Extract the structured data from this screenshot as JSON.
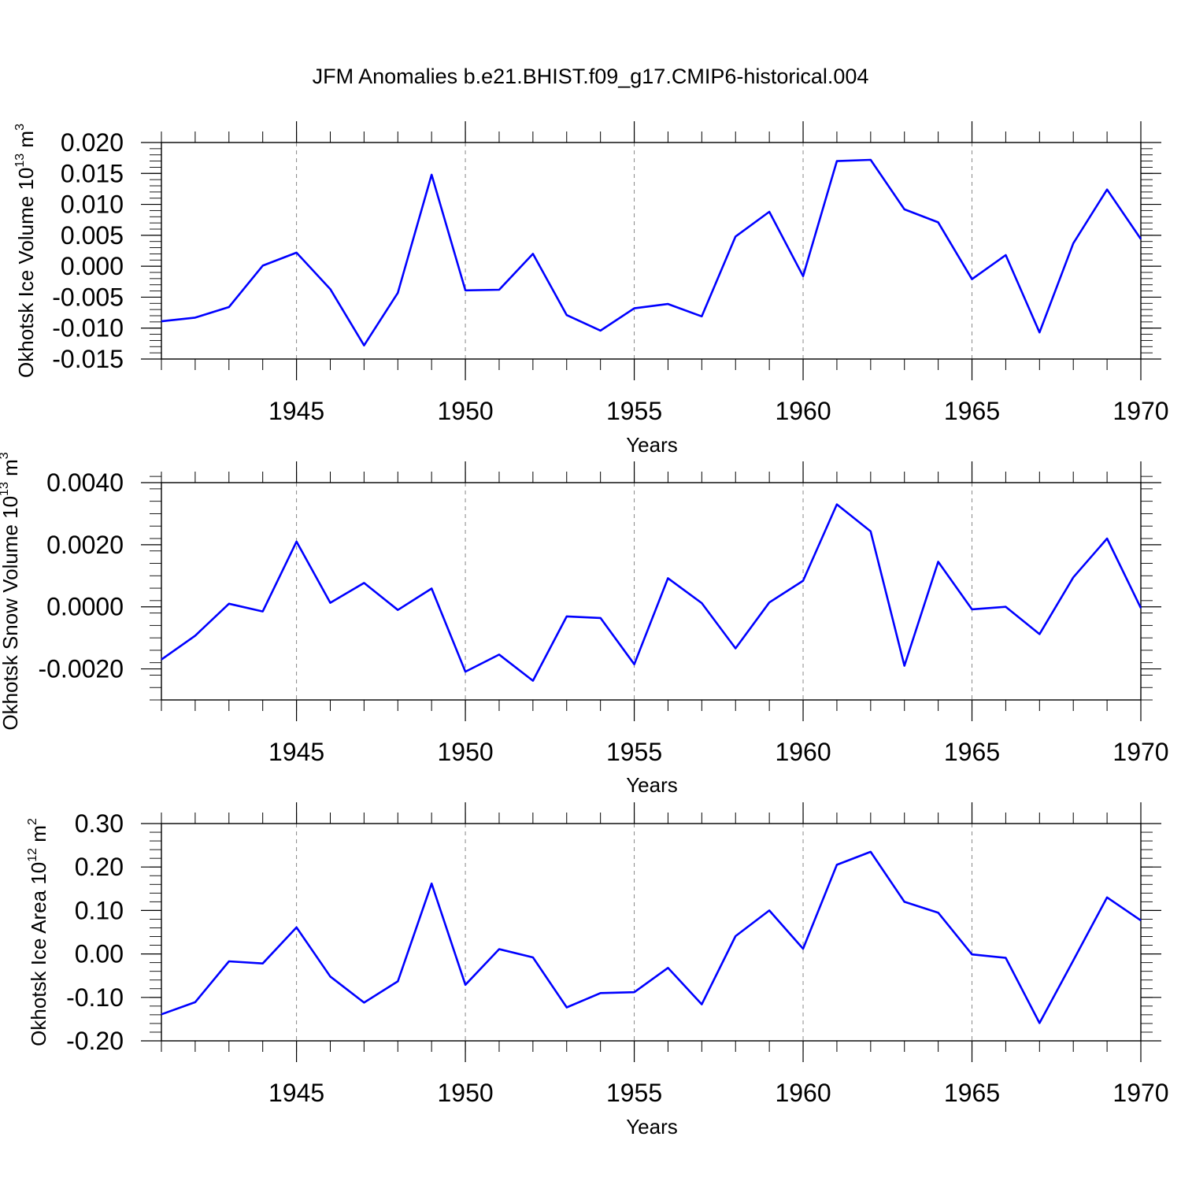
{
  "title": "JFM Anomalies b.e21.BHIST.f09_g17.CMIP6-historical.004",
  "line_color": "#0000ff",
  "chart_data": [
    {
      "type": "line",
      "ylabel": "Okhotsk Ice Volume 10",
      "ylabel_exp": "13",
      "ylabel_unit": " m",
      "ylabel_unit_exp": "3",
      "xlabel": "Years",
      "xlim": [
        1941,
        1970
      ],
      "ylim": [
        -0.015,
        0.02
      ],
      "yticks": [
        -0.015,
        -0.01,
        -0.005,
        0.0,
        0.005,
        0.01,
        0.015,
        0.02
      ],
      "ytick_labels": [
        "-0.015",
        "-0.010",
        "-0.005",
        "0.000",
        "0.005",
        "0.010",
        "0.015",
        "0.020"
      ],
      "yminor_step": 0.001,
      "xticks": [
        1945,
        1950,
        1955,
        1960,
        1965,
        1970
      ],
      "xtick_labels": [
        "1945",
        "1950",
        "1955",
        "1960",
        "1965",
        "1970"
      ],
      "x": [
        1941,
        1942,
        1943,
        1944,
        1945,
        1946,
        1947,
        1948,
        1949,
        1950,
        1951,
        1952,
        1953,
        1954,
        1955,
        1956,
        1957,
        1958,
        1959,
        1960,
        1961,
        1962,
        1963,
        1964,
        1965,
        1966,
        1967,
        1968,
        1969,
        1970
      ],
      "values": [
        -0.0089,
        -0.0083,
        -0.0066,
        0.0001,
        0.0022,
        -0.0037,
        -0.0128,
        -0.0043,
        0.0148,
        -0.0039,
        -0.0038,
        0.002,
        -0.0079,
        -0.0104,
        -0.0068,
        -0.0061,
        -0.0081,
        0.0048,
        0.0088,
        -0.0016,
        0.017,
        0.0172,
        0.0092,
        0.0071,
        -0.0021,
        0.0018,
        -0.0107,
        0.0037,
        0.0124,
        0.0044
      ]
    },
    {
      "type": "line",
      "ylabel": "Okhotsk Snow Volume 10",
      "ylabel_exp": "13",
      "ylabel_unit": " m",
      "ylabel_unit_exp": "3",
      "xlabel": "Years",
      "xlim": [
        1941,
        1970
      ],
      "ylim": [
        -0.003,
        0.004
      ],
      "yticks": [
        -0.002,
        0.0,
        0.002,
        0.004
      ],
      "ytick_labels": [
        "-0.0020",
        "0.0000",
        "0.0020",
        "0.0040"
      ],
      "yminor_step": 0.0004,
      "xticks": [
        1945,
        1950,
        1955,
        1960,
        1965,
        1970
      ],
      "xtick_labels": [
        "1945",
        "1950",
        "1955",
        "1960",
        "1965",
        "1970"
      ],
      "x": [
        1941,
        1942,
        1943,
        1944,
        1945,
        1946,
        1947,
        1948,
        1949,
        1950,
        1951,
        1952,
        1953,
        1954,
        1955,
        1956,
        1957,
        1958,
        1959,
        1960,
        1961,
        1962,
        1963,
        1964,
        1965,
        1966,
        1967,
        1968,
        1969,
        1970
      ],
      "values": [
        -0.0017,
        -0.00093,
        0.0001,
        -0.00015,
        0.0021,
        0.00013,
        0.00077,
        -0.0001,
        0.00059,
        -0.00209,
        -0.00154,
        -0.00238,
        -0.00031,
        -0.00036,
        -0.00185,
        0.00092,
        0.00012,
        -0.00134,
        0.00014,
        0.00084,
        0.0033,
        0.00243,
        -0.0019,
        0.00145,
        -8e-05,
        0.0,
        -0.00088,
        0.00095,
        0.0022,
        -4e-05
      ]
    },
    {
      "type": "line",
      "ylabel": "Okhotsk Ice Area 10",
      "ylabel_exp": "12",
      "ylabel_unit": " m",
      "ylabel_unit_exp": "2",
      "xlabel": "Years",
      "xlim": [
        1941,
        1970
      ],
      "ylim": [
        -0.2,
        0.3
      ],
      "yticks": [
        -0.2,
        -0.1,
        0.0,
        0.1,
        0.2,
        0.3
      ],
      "ytick_labels": [
        "-0.20",
        "-0.10",
        "0.00",
        "0.10",
        "0.20",
        "0.30"
      ],
      "yminor_step": 0.02,
      "xticks": [
        1945,
        1950,
        1955,
        1960,
        1965,
        1970
      ],
      "xtick_labels": [
        "1945",
        "1950",
        "1955",
        "1960",
        "1965",
        "1970"
      ],
      "x": [
        1941,
        1942,
        1943,
        1944,
        1945,
        1946,
        1947,
        1948,
        1949,
        1950,
        1951,
        1952,
        1953,
        1954,
        1955,
        1956,
        1957,
        1958,
        1959,
        1960,
        1961,
        1962,
        1963,
        1964,
        1965,
        1966,
        1967,
        1968,
        1969,
        1970
      ],
      "values": [
        -0.139,
        -0.111,
        -0.017,
        -0.022,
        0.061,
        -0.052,
        -0.112,
        -0.063,
        0.162,
        -0.071,
        0.011,
        -0.008,
        -0.123,
        -0.09,
        -0.088,
        -0.032,
        -0.116,
        0.041,
        0.1,
        0.012,
        0.205,
        0.235,
        0.12,
        0.095,
        -0.001,
        -0.009,
        -0.159,
        -0.015,
        0.13,
        0.077
      ]
    }
  ]
}
